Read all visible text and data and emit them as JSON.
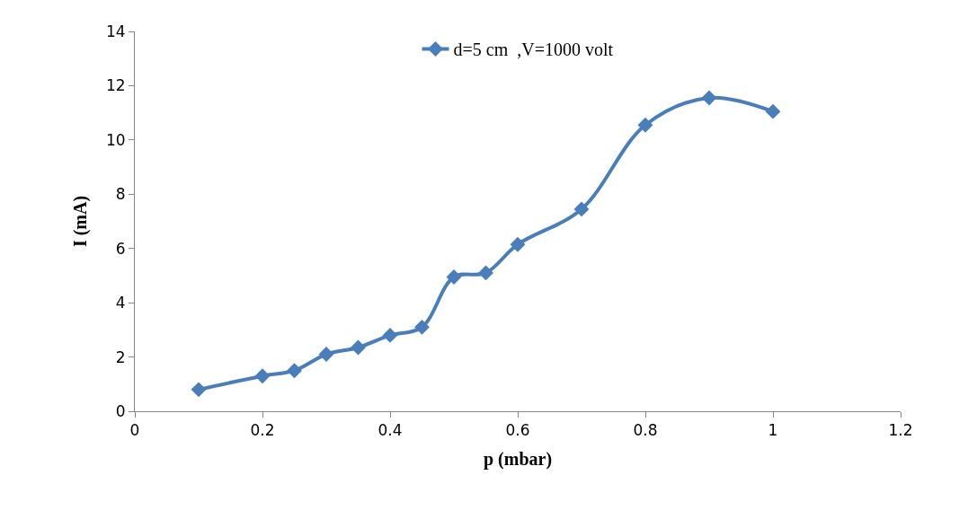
{
  "chart_data": {
    "type": "line",
    "xlabel": "p (mbar)",
    "ylabel": "I (mA)",
    "x": [
      0.1,
      0.2,
      0.25,
      0.3,
      0.35,
      0.4,
      0.45,
      0.5,
      0.55,
      0.6,
      0.7,
      0.8,
      0.9,
      1.0
    ],
    "series": [
      {
        "name": "d=5 cm  ,V=1000 volt",
        "color": "#4a7ebb",
        "values": [
          0.8,
          1.3,
          1.5,
          2.1,
          2.35,
          2.8,
          3.1,
          4.95,
          5.1,
          6.15,
          7.45,
          10.55,
          11.55,
          11.05
        ]
      }
    ],
    "xlim": [
      0,
      1.2
    ],
    "xticks": [
      0,
      0.2,
      0.4,
      0.6,
      0.8,
      1,
      1.2
    ],
    "ylim": [
      0,
      14
    ],
    "yticks": [
      0,
      2,
      4,
      6,
      8,
      10,
      12,
      14
    ],
    "grid": false,
    "legend": "top",
    "marker": "diamond",
    "line_style": "solid"
  }
}
